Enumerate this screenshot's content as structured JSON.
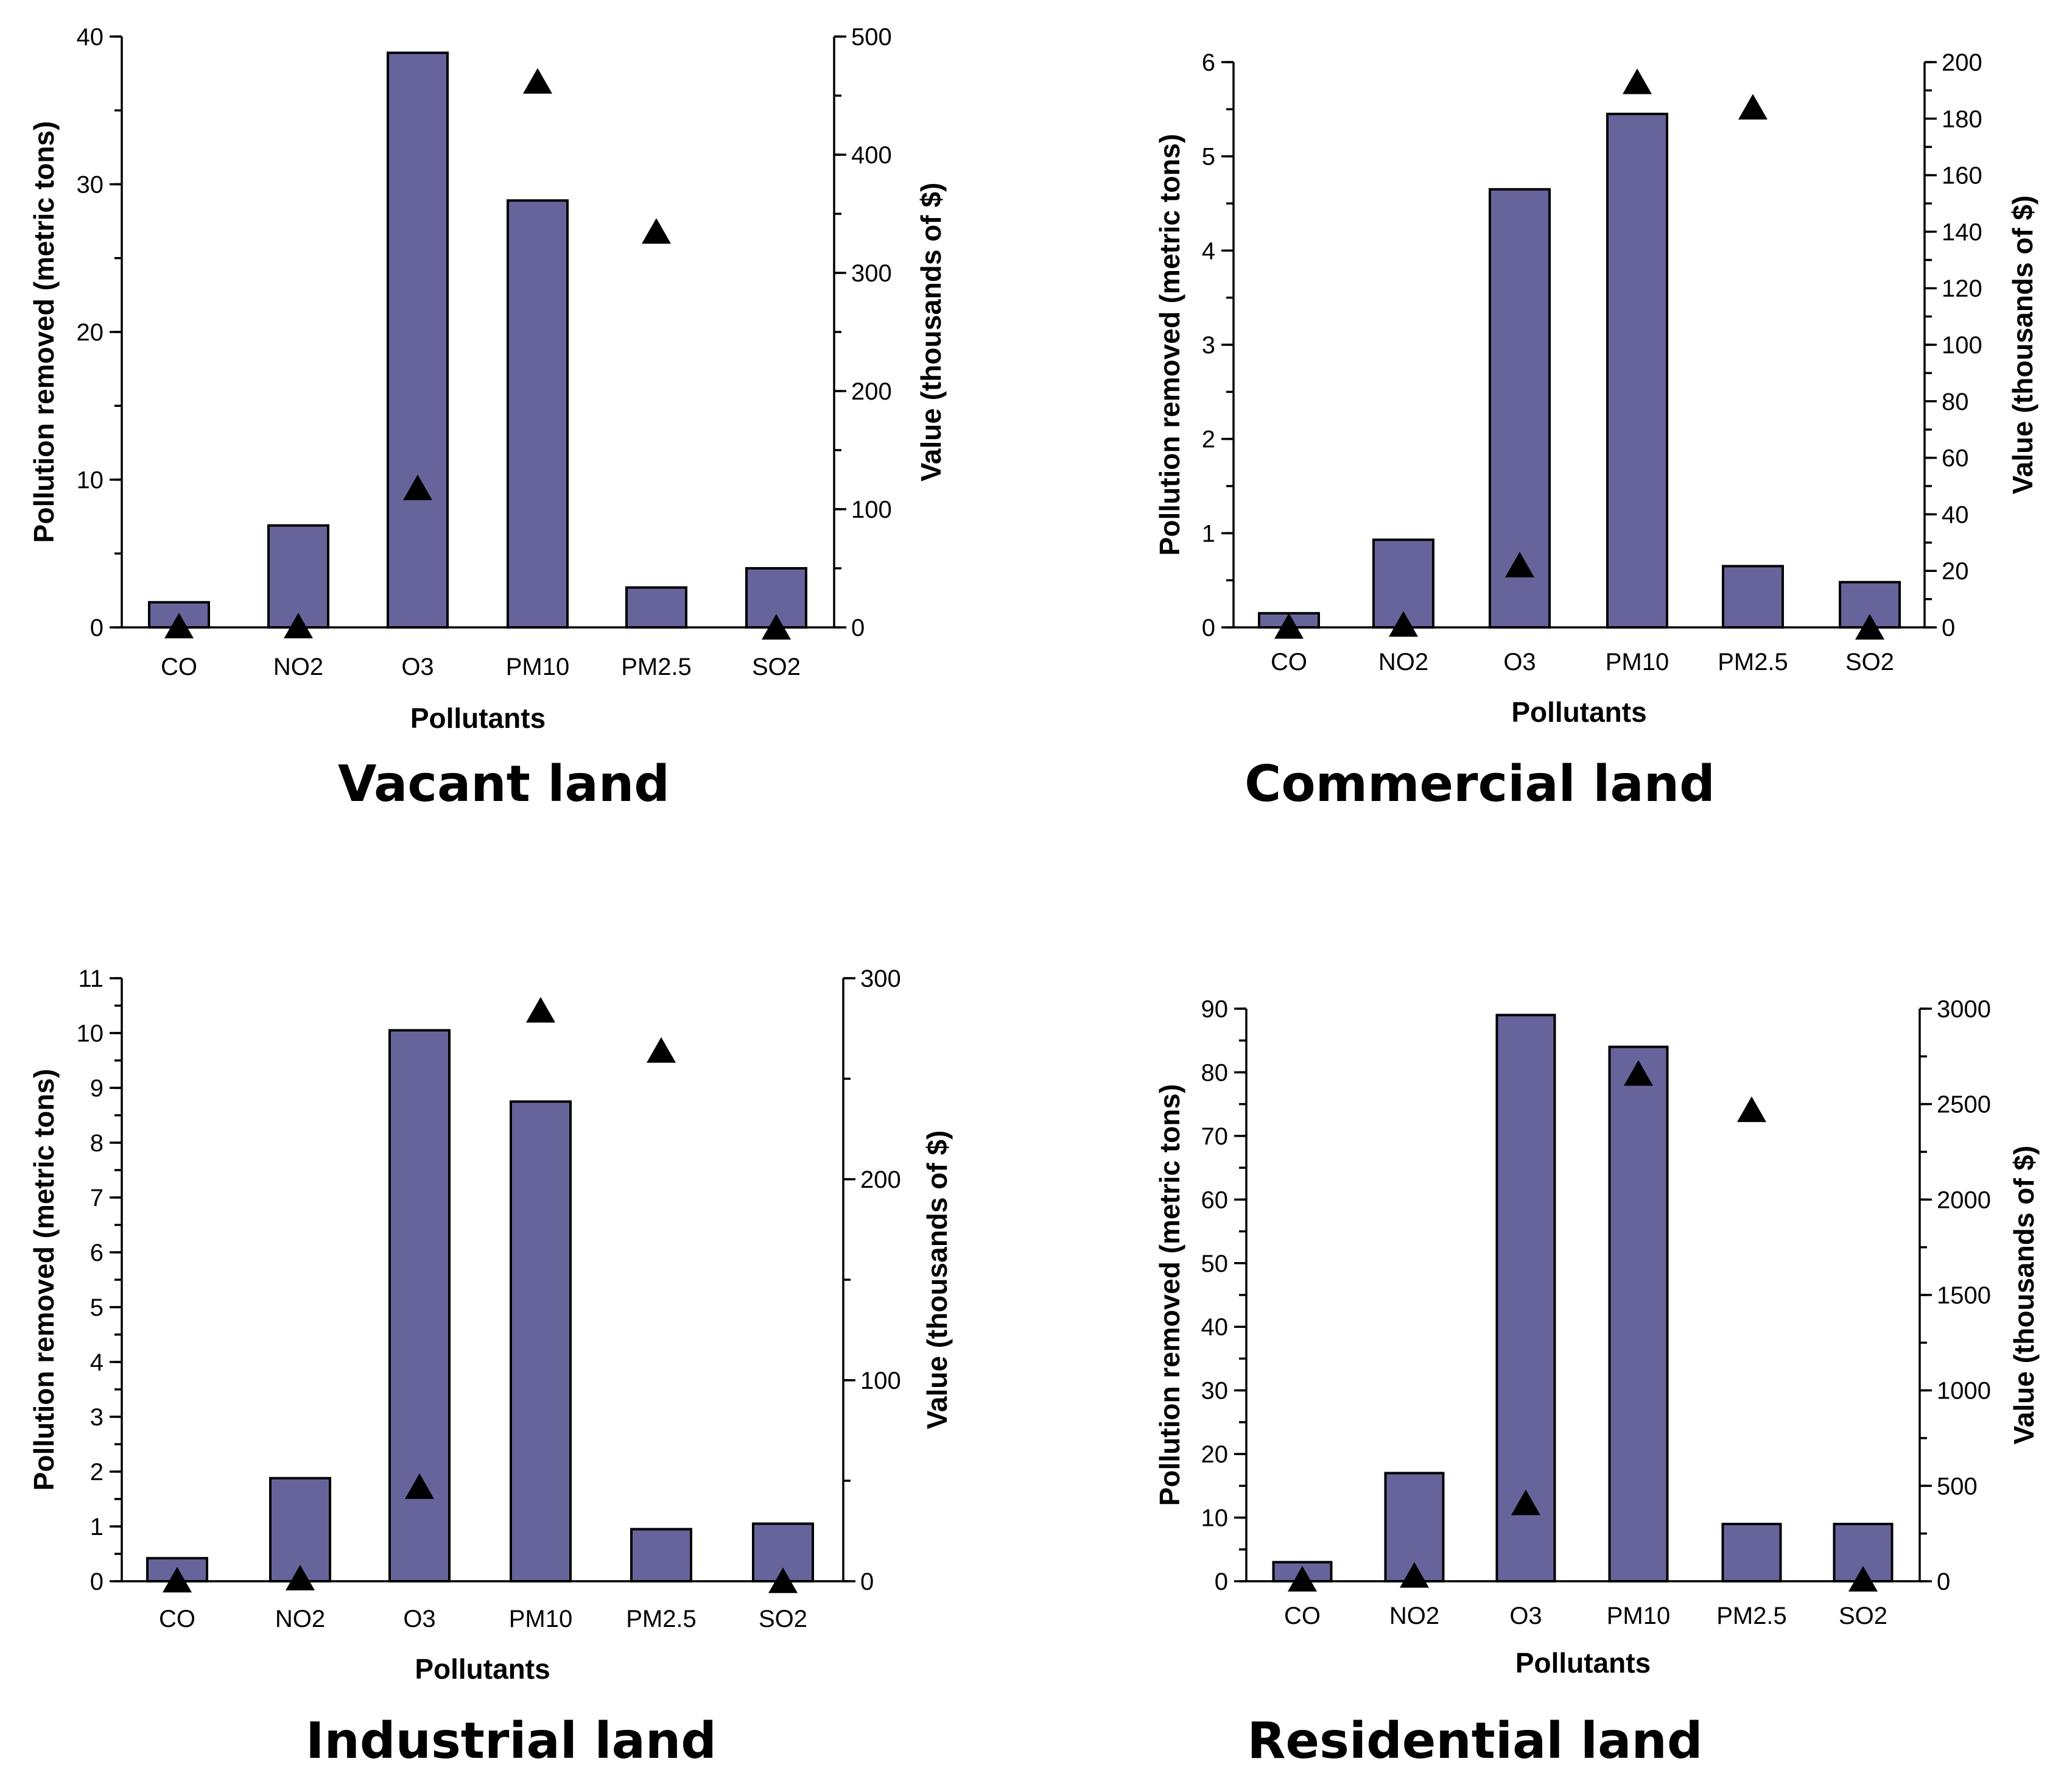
{
  "chart_data": [
    {
      "type": "bar",
      "title": "Vacant land",
      "categories": [
        "CO",
        "NO2",
        "O3",
        "PM10",
        "PM2.5",
        "SO2"
      ],
      "xlabel": "Pollutants",
      "ylabel": "Pollution removed (metric tons)",
      "y2label": "Value (thousands of $)",
      "ylim": [
        0,
        40
      ],
      "y2lim": [
        0,
        500
      ],
      "yticks": [
        0,
        10,
        20,
        30,
        40
      ],
      "y2ticks": [
        0,
        100,
        200,
        300,
        400,
        500
      ],
      "yminor": 5,
      "y2minor": 50,
      "series": [
        {
          "name": "Pollution removed (metric tons)",
          "kind": "bar",
          "axis": "left",
          "values": [
            1.7,
            6.9,
            38.9,
            28.9,
            2.7,
            4.0
          ]
        },
        {
          "name": "Value (thousands of $)",
          "kind": "marker",
          "axis": "right",
          "values": [
            1,
            1,
            118,
            462,
            335,
            0
          ]
        }
      ]
    },
    {
      "type": "bar",
      "title": "Commercial land",
      "categories": [
        "CO",
        "NO2",
        "O3",
        "PM10",
        "PM2.5",
        "SO2"
      ],
      "xlabel": "Pollutants",
      "ylabel": "Pollution removed (metric tons)",
      "y2label": "Value (thousands of $)",
      "ylim": [
        0,
        6
      ],
      "y2lim": [
        0,
        200
      ],
      "yticks": [
        0,
        1,
        2,
        3,
        4,
        5,
        6
      ],
      "y2ticks": [
        0,
        20,
        40,
        60,
        80,
        100,
        120,
        140,
        160,
        180,
        200
      ],
      "yminor": 0.5,
      "y2minor": 10,
      "series": [
        {
          "name": "Pollution removed (metric tons)",
          "kind": "bar",
          "axis": "left",
          "values": [
            0.15,
            0.93,
            4.65,
            5.45,
            0.65,
            0.48
          ]
        },
        {
          "name": "Value (thousands of $)",
          "kind": "marker",
          "axis": "right",
          "values": [
            0.3,
            1,
            22,
            193,
            184,
            0
          ]
        }
      ]
    },
    {
      "type": "bar",
      "title": "Industrial land",
      "categories": [
        "CO",
        "NO2",
        "O3",
        "PM10",
        "PM2.5",
        "SO2"
      ],
      "xlabel": "Pollutants",
      "ylabel": "Pollution removed (metric tons)",
      "y2label": "Value (thousands of $)",
      "ylim": [
        0,
        11
      ],
      "y2lim": [
        0,
        300
      ],
      "yticks": [
        0,
        1,
        2,
        3,
        4,
        5,
        6,
        7,
        8,
        9,
        10,
        11
      ],
      "y2ticks": [
        0,
        100,
        200,
        300
      ],
      "yminor": 0.5,
      "y2minor": 50,
      "series": [
        {
          "name": "Pollution removed (metric tons)",
          "kind": "bar",
          "axis": "left",
          "values": [
            0.42,
            1.88,
            10.05,
            8.75,
            0.95,
            1.05
          ]
        },
        {
          "name": "Value (thousands of $)",
          "kind": "marker",
          "axis": "right",
          "values": [
            0.5,
            1.5,
            47,
            284,
            264,
            0.2
          ]
        }
      ]
    },
    {
      "type": "bar",
      "title": "Residential land",
      "categories": [
        "CO",
        "NO2",
        "O3",
        "PM10",
        "PM2.5",
        "SO2"
      ],
      "xlabel": "Pollutants",
      "ylabel": "Pollution removed (metric tons)",
      "y2label": "Value (thousands of $)",
      "ylim": [
        0,
        90
      ],
      "y2lim": [
        0,
        3000
      ],
      "yticks": [
        0,
        10,
        20,
        30,
        40,
        50,
        60,
        70,
        80,
        90
      ],
      "y2ticks": [
        0,
        500,
        1000,
        1500,
        2000,
        2500,
        3000
      ],
      "yminor": 5,
      "y2minor": 250,
      "series": [
        {
          "name": "Pollution removed (metric tons)",
          "kind": "bar",
          "axis": "left",
          "values": [
            3,
            17,
            89,
            84,
            9,
            9
          ]
        },
        {
          "name": "Value (thousands of $)",
          "kind": "marker",
          "axis": "right",
          "values": [
            10,
            30,
            410,
            2660,
            2470,
            10
          ]
        }
      ]
    }
  ]
}
